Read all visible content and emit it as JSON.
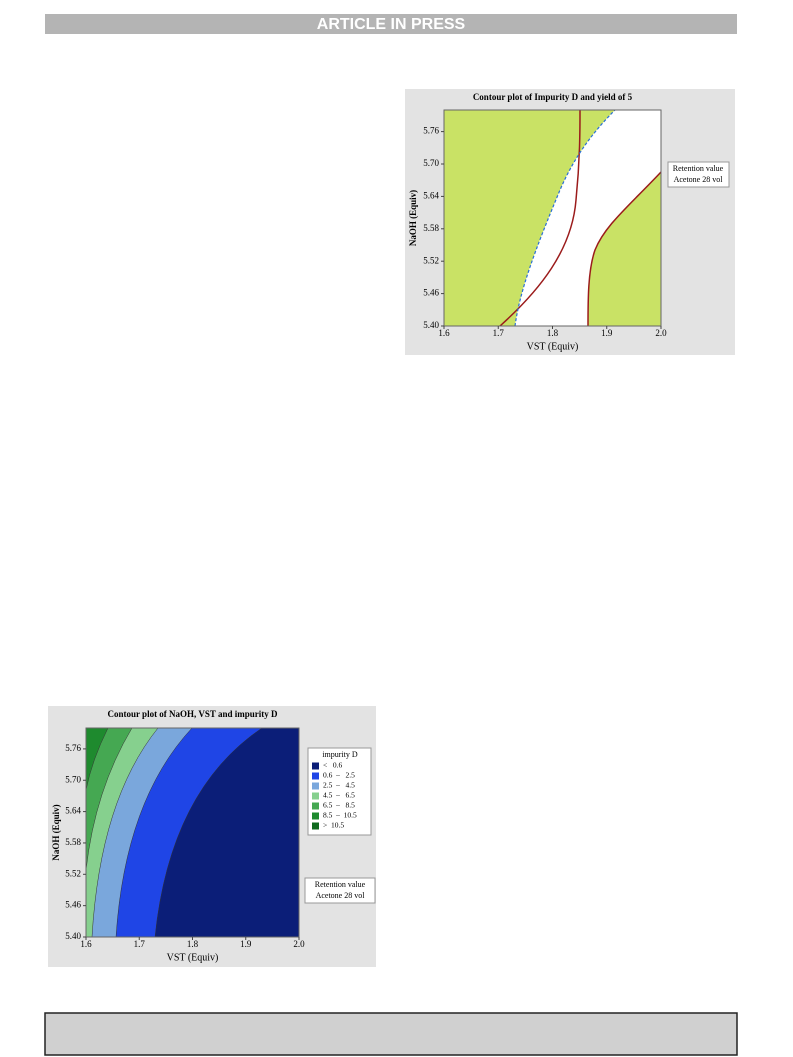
{
  "header": "ARTICLE IN PRESS",
  "figures": [
    {
      "title": "Contour plot of Impurity D and yield of 5",
      "xlabel": "VST (Equiv)",
      "ylabel": "NaOH (Equiv)",
      "xlim": [
        1.6,
        2.0
      ],
      "ylim": [
        5.4,
        5.8
      ],
      "xticks": [
        1.6,
        1.7,
        1.8,
        1.9,
        {
          "value": 2.0,
          "label": "2.0"
        }
      ],
      "yticks": [
        {
          "value": 5.4,
          "label": "5.40"
        },
        5.46,
        5.52,
        5.58,
        5.64,
        {
          "value": 5.7,
          "label": "5.70"
        },
        5.76
      ],
      "notes": [
        "Retention value",
        "Acetone 28 vol"
      ]
    },
    {
      "title": "Contour plot of NaOH, VST and impurity D",
      "xlabel": "VST (Equiv)",
      "ylabel": "NaOH (Equiv)",
      "xlim": [
        1.6,
        2.0
      ],
      "ylim": [
        5.4,
        5.8
      ],
      "xticks": [
        1.6,
        1.7,
        1.8,
        1.9,
        {
          "value": 2.0,
          "label": "2.0"
        }
      ],
      "yticks": [
        {
          "value": 5.4,
          "label": "5.40"
        },
        5.46,
        5.52,
        5.58,
        5.64,
        {
          "value": 5.7,
          "label": "5.70"
        },
        5.76
      ],
      "notes": [
        "Retention value",
        "Acetone 28 vol"
      ],
      "legend": {
        "title": "impurity D",
        "items": [
          {
            "label": "<   0.6",
            "color": "#0b1e78"
          },
          {
            "label": "0.6  –   2.5",
            "color": "#1f45e6"
          },
          {
            "label": "2.5  –   4.5",
            "color": "#7aa7dc"
          },
          {
            "label": "4.5  –   6.5",
            "color": "#86d08e"
          },
          {
            "label": "6.5  –   8.5",
            "color": "#45a852"
          },
          {
            "label": "8.5  –  10.5",
            "color": "#1e8a2e"
          },
          {
            "label": ">  10.5",
            "color": "#0f6a1e"
          }
        ]
      }
    }
  ]
}
